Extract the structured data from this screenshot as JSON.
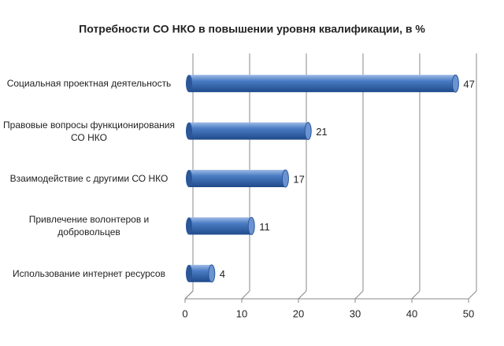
{
  "chart_data": {
    "type": "bar",
    "orientation": "horizontal",
    "title": "Потребности СО НКО в повышении уровня квалификации, в %",
    "categories": [
      "Социальная проектная деятельность",
      "Правовые вопросы функционирования СО НКО",
      "Взаимодействие с другими СО НКО",
      "Привлечение волонтеров и добровольцев",
      "Использование интернет ресурсов"
    ],
    "values": [
      47,
      21,
      17,
      11,
      4
    ],
    "color": "#3f6fb5",
    "xlim": [
      0,
      50
    ],
    "xticks": [
      0,
      10,
      20,
      30,
      40,
      50
    ],
    "grid": true
  }
}
